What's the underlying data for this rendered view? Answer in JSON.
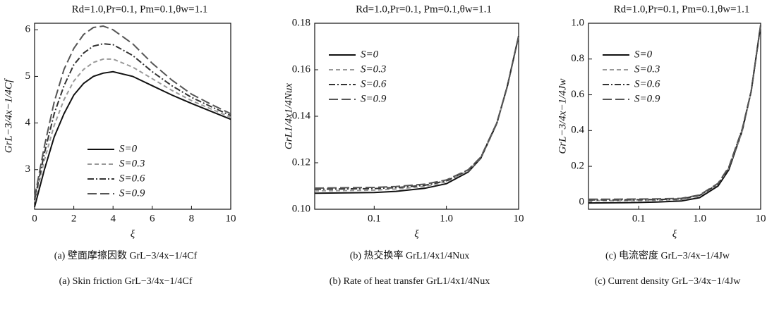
{
  "chart_data": [
    {
      "type": "line",
      "title": "Rd=1.0,Pr=0.1, Pm=0.1,θw=1.1",
      "x_label": "ξ",
      "y_label": "GrL−3/4x−1/4Cf",
      "captions": [
        "(a) 壁面摩擦因数 GrL−3/4x−1/4Cf",
        "(a) Skin friction GrL−3/4x−1/4Cf"
      ],
      "xscale": "linear",
      "legend_position": "lower center",
      "x": [
        0,
        0.5,
        1,
        1.5,
        2,
        2.5,
        3,
        3.5,
        4,
        5,
        6,
        7,
        8,
        9,
        10
      ],
      "xlim": [
        0,
        10
      ],
      "xticks": [
        0,
        2,
        4,
        6,
        8,
        10
      ],
      "ylim": [
        2.15,
        6.14
      ],
      "yticks": [
        3,
        4,
        5,
        6
      ],
      "series": [
        {
          "name": "S=0",
          "color": "#111111",
          "linestyle": "solid",
          "values": [
            2.2,
            3.0,
            3.7,
            4.2,
            4.6,
            4.85,
            5.0,
            5.07,
            5.1,
            5.0,
            4.8,
            4.6,
            4.42,
            4.25,
            4.08
          ]
        },
        {
          "name": "S=0.3",
          "color": "#999999",
          "linestyle": "dashed",
          "values": [
            2.3,
            3.2,
            3.95,
            4.5,
            4.9,
            5.15,
            5.3,
            5.37,
            5.37,
            5.2,
            4.95,
            4.7,
            4.48,
            4.3,
            4.12
          ]
        },
        {
          "name": "S=0.6",
          "color": "#333333",
          "linestyle": "dashdot",
          "values": [
            2.35,
            3.35,
            4.2,
            4.8,
            5.25,
            5.5,
            5.65,
            5.7,
            5.68,
            5.45,
            5.1,
            4.8,
            4.55,
            4.35,
            4.16
          ]
        },
        {
          "name": "S=0.9",
          "color": "#555555",
          "linestyle": "longdash",
          "values": [
            2.4,
            3.5,
            4.45,
            5.15,
            5.6,
            5.9,
            6.05,
            6.08,
            6.0,
            5.7,
            5.28,
            4.92,
            4.62,
            4.4,
            4.2
          ]
        }
      ]
    },
    {
      "type": "line",
      "title": "Rd=1.0,Pr=0.1, Pm=0.1,θw=1.1",
      "x_label": "ξ",
      "y_label": "GrL1/4x1/4Nux",
      "captions": [
        "(b) 热交换率 GrL1/4x1/4Nux",
        "(b) Rate of heat transfer GrL1/4x1/4Nux"
      ],
      "xscale": "log",
      "legend_position": "upper left",
      "x": [
        0.015,
        0.03,
        0.1,
        0.2,
        0.5,
        1,
        2,
        3,
        5,
        7,
        10
      ],
      "xlim": [
        0.015,
        10
      ],
      "xticks": [
        0.1,
        {
          "value": 1,
          "label": "1.0"
        },
        10
      ],
      "ylim": [
        0.1,
        0.18
      ],
      "yticks": [
        {
          "value": 0.1,
          "label": "0.10"
        },
        0.12,
        0.14,
        0.16,
        0.18
      ],
      "series": [
        {
          "name": "S=0",
          "color": "#111111",
          "linestyle": "solid",
          "values": [
            0.1069,
            0.107,
            0.1072,
            0.1077,
            0.109,
            0.111,
            0.116,
            0.122,
            0.137,
            0.153,
            0.1745
          ]
        },
        {
          "name": "S=0.3",
          "color": "#999999",
          "linestyle": "dashed",
          "values": [
            0.1079,
            0.108,
            0.1082,
            0.1087,
            0.1098,
            0.1118,
            0.1165,
            0.1222,
            0.137,
            0.153,
            0.1745
          ]
        },
        {
          "name": "S=0.6",
          "color": "#333333",
          "linestyle": "dashdot",
          "values": [
            0.1086,
            0.1087,
            0.1089,
            0.1093,
            0.1103,
            0.1122,
            0.1168,
            0.1224,
            0.1372,
            0.1531,
            0.1745
          ]
        },
        {
          "name": "S=0.9",
          "color": "#555555",
          "linestyle": "longdash",
          "values": [
            0.1091,
            0.1092,
            0.1094,
            0.1098,
            0.1108,
            0.1126,
            0.117,
            0.1225,
            0.1372,
            0.1531,
            0.1745
          ]
        }
      ]
    },
    {
      "type": "line",
      "title": "Rd=1.0,Pr=0.1, Pm=0.1,θw=1.1",
      "x_label": "ξ",
      "y_label": "GrL−3/4x−1/4Jw",
      "captions": [
        "(c) 电流密度 GrL−3/4x−1/4Jw",
        "(c) Current density GrL−3/4x−1/4Jw"
      ],
      "xscale": "log",
      "legend_position": "upper left",
      "x": [
        0.015,
        0.03,
        0.1,
        0.2,
        0.5,
        1,
        2,
        3,
        5,
        7,
        10
      ],
      "xlim": [
        0.015,
        10
      ],
      "xticks": [
        0.1,
        {
          "value": 1,
          "label": "1.0"
        },
        10
      ],
      "ylim": [
        -0.04,
        1.0
      ],
      "yticks": [
        0,
        0.2,
        0.4,
        0.6,
        0.8,
        {
          "value": 1,
          "label": "1.0"
        }
      ],
      "series": [
        {
          "name": "S=0",
          "color": "#111111",
          "linestyle": "solid",
          "values": [
            -0.005,
            -0.004,
            -0.002,
            0.0,
            0.006,
            0.025,
            0.09,
            0.18,
            0.4,
            0.62,
            0.99
          ]
        },
        {
          "name": "S=0.3",
          "color": "#999999",
          "linestyle": "dashed",
          "values": [
            0.008,
            0.008,
            0.009,
            0.01,
            0.014,
            0.035,
            0.1,
            0.19,
            0.4,
            0.62,
            0.99
          ]
        },
        {
          "name": "S=0.6",
          "color": "#333333",
          "linestyle": "dashdot",
          "values": [
            0.012,
            0.012,
            0.013,
            0.014,
            0.018,
            0.038,
            0.1,
            0.19,
            0.41,
            0.62,
            0.99
          ]
        },
        {
          "name": "S=0.9",
          "color": "#555555",
          "linestyle": "longdash",
          "values": [
            0.016,
            0.016,
            0.017,
            0.018,
            0.021,
            0.04,
            0.105,
            0.195,
            0.41,
            0.62,
            0.99
          ]
        }
      ]
    }
  ]
}
